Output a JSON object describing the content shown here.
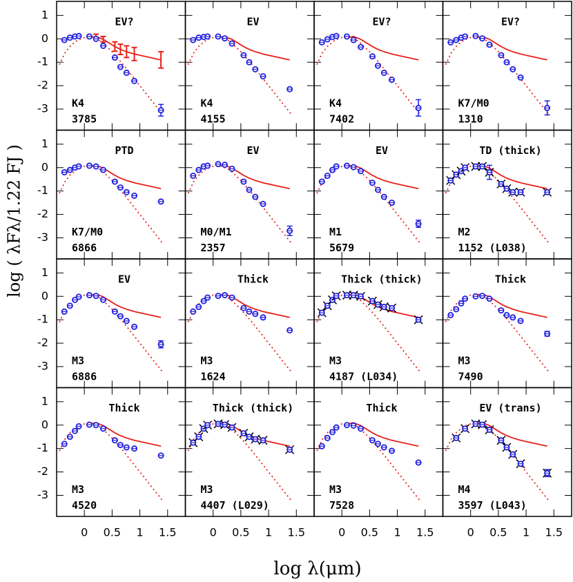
{
  "x_label": "log λ(μm)",
  "y_label": "log ( λFλ/1.22 FJ )",
  "axes": {
    "xlim": [
      -0.5,
      1.82
    ],
    "ylim": [
      -3.9,
      1.6
    ],
    "xticks": [
      0,
      0.5,
      1,
      1.5
    ],
    "yticks": [
      -3,
      -2,
      -1,
      0,
      1
    ]
  },
  "bands": [
    -0.36,
    -0.26,
    -0.17,
    -0.1,
    0.09,
    0.21,
    0.34,
    0.55,
    0.65,
    0.76,
    0.9,
    1.38
  ],
  "median": {
    "color": "#e8201a",
    "x": [
      0.09,
      0.21,
      0.34,
      0.55,
      0.65,
      0.76,
      0.9,
      1.38
    ],
    "values": [
      0.05,
      0.1,
      -0.02,
      -0.33,
      -0.45,
      -0.55,
      -0.65,
      -0.9
    ]
  },
  "photosphere": {
    "color": "#e8201a",
    "x": [
      -0.45,
      -0.35,
      -0.25,
      -0.15,
      -0.05,
      0.05,
      0.15,
      0.3,
      0.5,
      0.7,
      0.9,
      1.1,
      1.4
    ],
    "values": [
      -1.1,
      -0.6,
      -0.3,
      -0.1,
      0.02,
      0.08,
      0.07,
      -0.1,
      -0.55,
      -1.1,
      -1.7,
      -2.3,
      -3.2
    ]
  },
  "chart_data": [
    {
      "type": "scatter",
      "title": "EV?",
      "spt": "K4",
      "id": "3785",
      "color": "#2020e0",
      "values": [
        -0.05,
        0.05,
        0.1,
        0.12,
        0.1,
        0.0,
        -0.3,
        -0.8,
        -1.2,
        -1.45,
        -1.8,
        -3.05
      ],
      "errors": [
        null,
        null,
        null,
        null,
        null,
        null,
        null,
        null,
        null,
        null,
        null,
        0.25
      ],
      "median_errors": [
        null,
        0.1,
        0.12,
        0.2,
        0.22,
        0.25,
        0.28,
        0.35
      ]
    },
    {
      "type": "scatter",
      "title": "EV",
      "spt": "K4",
      "id": "4155",
      "color": "#2020e0",
      "values": [
        -0.05,
        0.05,
        0.08,
        0.1,
        0.1,
        0.02,
        -0.2,
        -0.7,
        -1.0,
        -1.3,
        -1.6,
        -2.15
      ]
    },
    {
      "type": "scatter",
      "title": "EV?",
      "spt": "K4",
      "id": "7402",
      "color": "#2020e0",
      "values": [
        -0.15,
        -0.02,
        0.08,
        0.12,
        0.1,
        -0.05,
        -0.35,
        -0.75,
        -1.15,
        -1.45,
        -1.75,
        -2.95
      ],
      "errors": [
        null,
        null,
        null,
        null,
        null,
        null,
        null,
        null,
        null,
        null,
        null,
        0.35
      ]
    },
    {
      "type": "scatter",
      "title": "EV?",
      "spt": "K7/M0",
      "id": "1310",
      "color": "#2020e0",
      "values": [
        -0.15,
        -0.05,
        0.05,
        0.1,
        0.12,
        0.02,
        -0.25,
        -0.7,
        -1.0,
        -1.3,
        -1.65,
        -2.95
      ],
      "errors": [
        null,
        null,
        null,
        null,
        null,
        null,
        null,
        null,
        null,
        null,
        null,
        0.3
      ]
    },
    {
      "type": "scatter",
      "title": "PTD",
      "spt": "K7/M0",
      "id": "6866",
      "color": "#2020e0",
      "values": [
        -0.2,
        -0.1,
        0.0,
        0.05,
        0.08,
        0.05,
        -0.1,
        -0.6,
        -0.85,
        -1.05,
        -1.2,
        -1.45
      ]
    },
    {
      "type": "scatter",
      "title": "EV",
      "spt": "M0/M1",
      "id": "2357",
      "color": "#2020e0",
      "values": [
        -0.35,
        -0.1,
        0.05,
        0.08,
        0.15,
        0.12,
        -0.05,
        -0.6,
        -0.95,
        -1.25,
        -1.55,
        -2.7
      ],
      "errors": [
        null,
        null,
        null,
        null,
        null,
        null,
        null,
        null,
        null,
        null,
        null,
        0.2
      ]
    },
    {
      "type": "scatter",
      "title": "EV",
      "spt": "M1",
      "id": "5679",
      "color": "#2020e0",
      "values": [
        -0.6,
        -0.35,
        -0.1,
        0.05,
        0.08,
        0.02,
        -0.15,
        -0.65,
        -0.95,
        -1.25,
        -1.5,
        -2.4
      ],
      "errors": [
        null,
        null,
        null,
        null,
        null,
        null,
        null,
        null,
        null,
        null,
        null,
        0.15
      ]
    },
    {
      "type": "scatter",
      "title": "TD (thick)",
      "spt": "M2",
      "id": "1152 (L038)",
      "color": "#2020e0",
      "crosses": true,
      "values": [
        -0.55,
        -0.3,
        -0.15,
        0.0,
        0.05,
        0.05,
        -0.2,
        -0.7,
        -0.9,
        -1.05,
        -1.05,
        -1.05
      ],
      "errors": [
        null,
        null,
        null,
        null,
        null,
        null,
        0.3,
        null,
        null,
        null,
        null,
        null
      ]
    },
    {
      "type": "scatter",
      "title": "EV",
      "spt": "M3",
      "id": "6886",
      "color": "#2020e0",
      "values": [
        -0.65,
        -0.4,
        -0.15,
        -0.02,
        0.05,
        0.02,
        -0.15,
        -0.65,
        -0.85,
        -1.05,
        -1.3,
        -2.05
      ],
      "errors": [
        null,
        null,
        null,
        null,
        null,
        null,
        null,
        null,
        null,
        null,
        null,
        0.15
      ]
    },
    {
      "type": "scatter",
      "title": "Thick",
      "spt": "M3",
      "id": "1624",
      "color": "#2020e0",
      "values": [
        -0.65,
        -0.45,
        -0.2,
        -0.05,
        0.02,
        0.05,
        -0.05,
        -0.5,
        -0.65,
        -0.75,
        -0.9,
        -1.45
      ]
    },
    {
      "type": "scatter",
      "title": "Thick (thick)",
      "spt": "M3",
      "id": "4187 (L034)",
      "color": "#2020e0",
      "crosses": true,
      "values": [
        -0.7,
        -0.4,
        -0.15,
        0.02,
        0.05,
        0.05,
        0.0,
        -0.2,
        -0.35,
        -0.45,
        -0.5,
        -1.0
      ]
    },
    {
      "type": "scatter",
      "title": "Thick",
      "spt": "M3",
      "id": "7490",
      "color": "#2020e0",
      "values": [
        -0.8,
        -0.55,
        -0.3,
        -0.1,
        0.0,
        0.02,
        -0.1,
        -0.6,
        -0.8,
        -0.9,
        -1.05,
        -1.6
      ],
      "errors": [
        null,
        null,
        null,
        null,
        null,
        null,
        null,
        null,
        null,
        null,
        null,
        0.1
      ]
    },
    {
      "type": "scatter",
      "title": "Thick",
      "spt": "M3",
      "id": "4520",
      "color": "#2020e0",
      "values": [
        -0.8,
        -0.5,
        -0.25,
        -0.05,
        0.02,
        0.0,
        -0.15,
        -0.65,
        -0.85,
        -0.95,
        -1.0,
        -1.3
      ]
    },
    {
      "type": "scatter",
      "title": "Thick (thick)",
      "spt": "M3",
      "id": "4407 (L029)",
      "color": "#2020e0",
      "crosses": true,
      "values": [
        -0.75,
        -0.5,
        -0.15,
        0.0,
        0.05,
        0.02,
        -0.1,
        -0.35,
        -0.5,
        -0.6,
        -0.65,
        -1.05
      ]
    },
    {
      "type": "scatter",
      "title": "Thick",
      "spt": "M3",
      "id": "7528",
      "color": "#2020e0",
      "values": [
        -0.9,
        -0.55,
        -0.3,
        -0.1,
        0.0,
        -0.02,
        -0.15,
        -0.65,
        -0.8,
        -0.95,
        -1.1,
        -1.6
      ]
    },
    {
      "type": "scatter",
      "title": "EV (trans)",
      "spt": "M4",
      "id": "3597 (L043)",
      "color": "#2020e0",
      "crosses": true,
      "values": [
        null,
        -0.55,
        null,
        -0.15,
        0.05,
        0.02,
        -0.2,
        -0.65,
        -0.95,
        -1.25,
        -1.65,
        -2.05
      ],
      "errors": [
        null,
        null,
        null,
        null,
        null,
        null,
        null,
        null,
        null,
        null,
        null,
        0.15
      ]
    }
  ]
}
